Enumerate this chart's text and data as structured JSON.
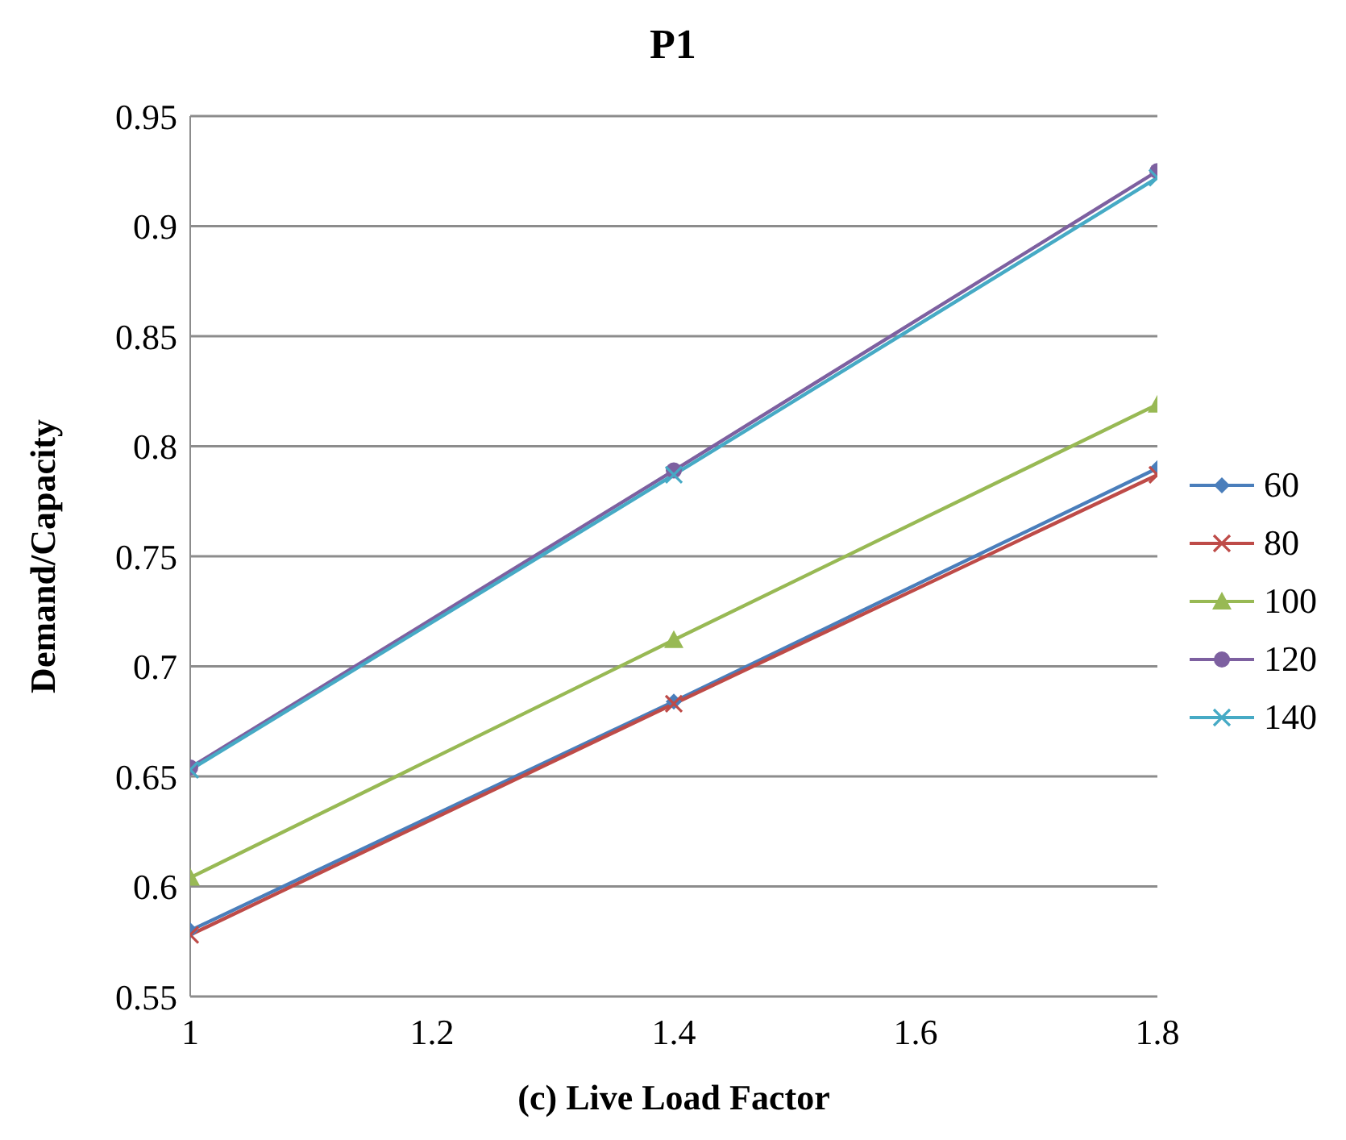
{
  "chart_data": {
    "type": "line",
    "title": "P1",
    "xlabel": "(c) Live Load Factor",
    "ylabel": "Demand/Capacity",
    "x": [
      1,
      1.4,
      1.8
    ],
    "series": [
      {
        "name": "60",
        "color": "#4a7ebb",
        "marker": "diamond",
        "values": [
          0.58,
          0.684,
          0.79
        ]
      },
      {
        "name": "80",
        "color": "#be4b48",
        "marker": "cross",
        "values": [
          0.578,
          0.683,
          0.787
        ]
      },
      {
        "name": "100",
        "color": "#98b954",
        "marker": "triangle",
        "values": [
          0.604,
          0.712,
          0.819
        ]
      },
      {
        "name": "120",
        "color": "#7d60a0",
        "marker": "circle",
        "values": [
          0.654,
          0.789,
          0.925
        ]
      },
      {
        "name": "140",
        "color": "#46aac5",
        "marker": "cross",
        "values": [
          0.653,
          0.787,
          0.922
        ]
      }
    ],
    "xlim": [
      1,
      1.8
    ],
    "xticks": [
      {
        "value": 1,
        "label": "1"
      },
      1.2,
      1.4,
      1.6,
      1.8
    ],
    "ylim": [
      0.55,
      0.95
    ],
    "yticks": [
      0.55,
      0.6,
      0.65,
      0.7,
      0.75,
      0.8,
      0.85,
      0.9,
      0.95
    ],
    "grid": "y",
    "legend": "right",
    "line_style": "solid"
  }
}
